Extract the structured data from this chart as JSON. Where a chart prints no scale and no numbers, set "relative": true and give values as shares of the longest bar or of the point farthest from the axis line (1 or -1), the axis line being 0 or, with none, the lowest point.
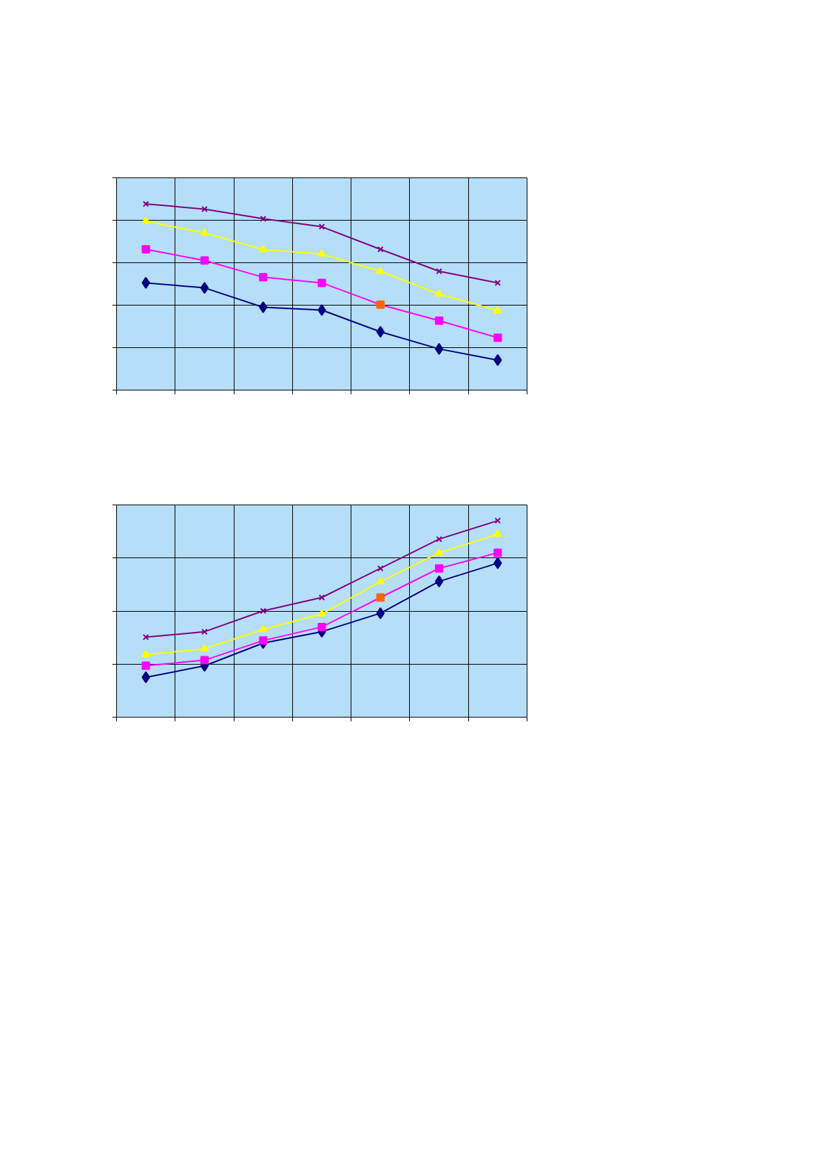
{
  "chart_data": [
    {
      "type": "line",
      "relative": true,
      "categories": [
        null,
        null,
        null,
        null,
        null,
        null,
        null
      ],
      "grid": true,
      "tick_labels": false,
      "series": [
        {
          "color": "#000080",
          "marker": "diamond",
          "values": [
            0.576,
            0.549,
            0.445,
            0.43,
            0.313,
            0.221,
            0.161
          ]
        },
        {
          "color": "#ff00ff",
          "marker": "square",
          "colors": [
            "#ff00ff",
            "#ff00ff",
            "#ff00ff",
            "#ff00ff",
            "#ff6600",
            "#ff00ff",
            "#ff00ff"
          ],
          "values": [
            0.756,
            0.696,
            0.606,
            0.576,
            0.459,
            0.373,
            0.281
          ]
        },
        {
          "color": "#ffff00",
          "marker": "triangle",
          "values": [
            0.907,
            0.844,
            0.755,
            0.731,
            0.638,
            0.516,
            0.427
          ]
        },
        {
          "color": "#800080",
          "marker": "cross",
          "values": [
            1,
            0.972,
            0.92,
            0.877,
            0.756,
            0.638,
            0.576
          ]
        }
      ]
    },
    {
      "type": "line",
      "relative": true,
      "categories": [
        null,
        null,
        null,
        null,
        null,
        null,
        null
      ],
      "grid": true,
      "tick_labels": false,
      "series": [
        {
          "color": "#000080",
          "marker": "diamond",
          "values": [
            0.203,
            0.261,
            0.377,
            0.435,
            0.529,
            0.691,
            0.784
          ]
        },
        {
          "color": "#ff00ff",
          "marker": "square",
          "colors": [
            "#ff00ff",
            "#ff00ff",
            "#ff00ff",
            "#ff00ff",
            "#ff6600",
            "#ff00ff",
            "#ff00ff"
          ],
          "values": [
            0.262,
            0.29,
            0.39,
            0.459,
            0.609,
            0.757,
            0.837
          ]
        },
        {
          "color": "#ffff00",
          "marker": "triangle",
          "values": [
            0.318,
            0.348,
            0.447,
            0.525,
            0.69,
            0.836,
            0.931
          ]
        },
        {
          "color": "#800080",
          "marker": "cross",
          "values": [
            0.407,
            0.435,
            0.541,
            0.609,
            0.757,
            0.906,
            1
          ]
        }
      ]
    }
  ]
}
